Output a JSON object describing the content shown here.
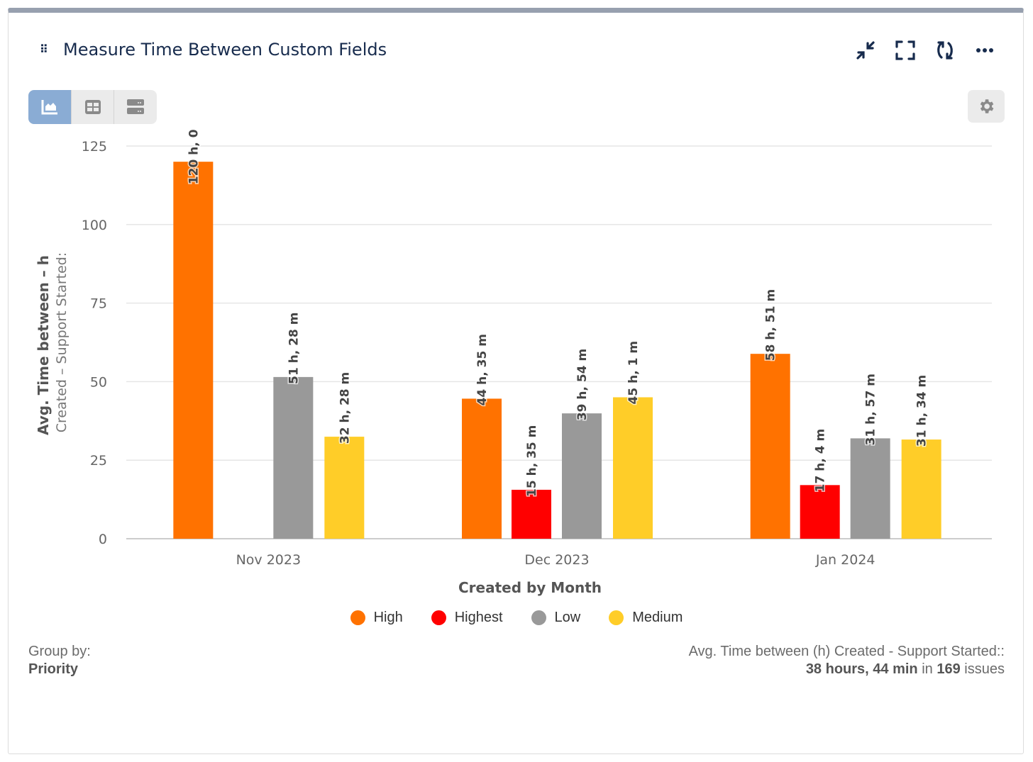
{
  "header": {
    "title": "Measure Time Between Custom Fields",
    "icons": [
      "drag-handle-icon",
      "minimize-icon",
      "fullscreen-icon",
      "refresh-icon",
      "more-icon"
    ]
  },
  "view_switcher": {
    "options": [
      "chart-view",
      "table-view",
      "list-view"
    ],
    "active": "chart-view"
  },
  "colors": {
    "High": "#ff7200",
    "Highest": "#ff0000",
    "Low": "#999999",
    "Medium": "#ffcd28",
    "accent": "#8aacd4"
  },
  "chart_data": {
    "type": "bar",
    "xlabel": "Created by Month",
    "ylabel": "Avg. Time between – h",
    "ylabel2": "Created – Support Started:",
    "categories": [
      "Nov 2023",
      "Dec 2023",
      "Jan 2024"
    ],
    "ylim": [
      0,
      125
    ],
    "yticks": [
      "0",
      "25",
      "50",
      "75",
      "100",
      "125"
    ],
    "grid": true,
    "legend_position": "bottom",
    "series": [
      {
        "name": "High",
        "values": [
          120.0,
          44.58,
          58.85
        ],
        "labels": [
          "120 h, 0",
          "44 h, 35 m",
          "58 h, 51 m"
        ]
      },
      {
        "name": "Highest",
        "values": [
          null,
          15.58,
          17.07
        ],
        "labels": [
          "",
          "15 h, 35 m",
          "17 h, 4 m"
        ]
      },
      {
        "name": "Low",
        "values": [
          51.47,
          39.9,
          31.95
        ],
        "labels": [
          "51 h, 28 m",
          "39 h, 54 m",
          "31 h, 57 m"
        ]
      },
      {
        "name": "Medium",
        "values": [
          32.47,
          45.02,
          31.57
        ],
        "labels": [
          "32 h, 28 m",
          "45 h, 1 m",
          "31 h, 34 m"
        ]
      }
    ]
  },
  "footer": {
    "group_by_label": "Group by:",
    "group_by_value": "Priority",
    "summary_label": "Avg. Time between (h) Created - Support Started::",
    "summary_value": "38 hours, 44 min",
    "summary_in": "in",
    "summary_count": "169",
    "summary_unit": "issues"
  }
}
